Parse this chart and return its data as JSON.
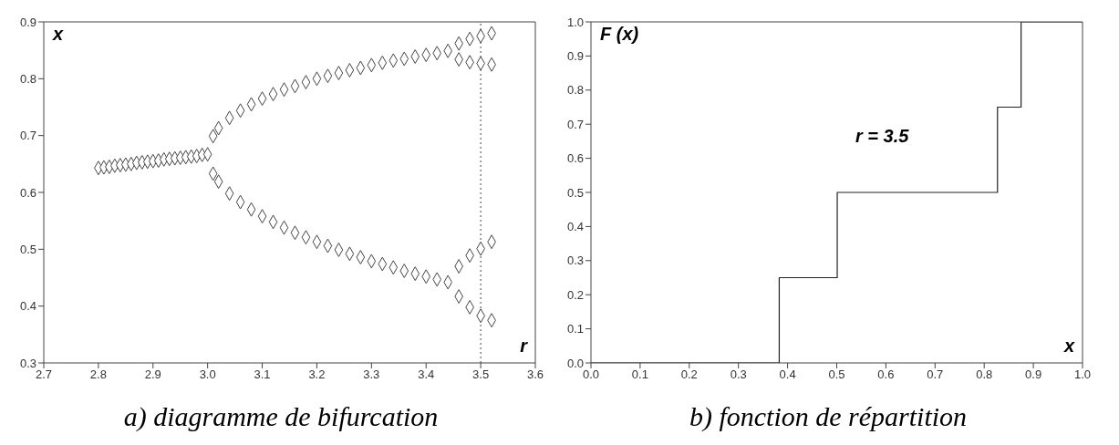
{
  "chart_data": [
    {
      "type": "scatter",
      "title": "a) diagramme de bifurcation",
      "xlabel": "r",
      "ylabel": "x",
      "marker": "diamond",
      "grid": false,
      "series": [
        {
          "color": "#444444",
          "x": [
            2.8,
            2.81,
            2.82,
            2.83,
            2.84,
            2.85,
            2.86,
            2.87,
            2.88,
            2.89,
            2.9,
            2.91,
            2.92,
            2.93,
            2.94,
            2.95,
            2.96,
            2.97,
            2.98,
            2.99,
            3.0,
            3.01,
            3.02,
            3.04,
            3.06,
            3.08,
            3.1,
            3.12,
            3.14,
            3.16,
            3.18,
            3.2,
            3.22,
            3.24,
            3.26,
            3.28,
            3.3,
            3.32,
            3.34,
            3.36,
            3.38,
            3.4,
            3.42,
            3.44,
            3.01,
            3.02,
            3.04,
            3.06,
            3.08,
            3.1,
            3.12,
            3.14,
            3.16,
            3.18,
            3.2,
            3.22,
            3.24,
            3.26,
            3.28,
            3.3,
            3.32,
            3.34,
            3.36,
            3.38,
            3.4,
            3.42,
            3.44,
            3.46,
            3.48,
            3.5,
            3.52,
            3.46,
            3.48,
            3.5,
            3.52,
            3.46,
            3.48,
            3.5,
            3.52,
            3.46,
            3.48,
            3.5,
            3.52
          ],
          "values": [
            0.643,
            0.644,
            0.645,
            0.647,
            0.648,
            0.649,
            0.65,
            0.652,
            0.653,
            0.654,
            0.655,
            0.656,
            0.658,
            0.659,
            0.66,
            0.661,
            0.662,
            0.663,
            0.664,
            0.666,
            0.667,
            0.699,
            0.713,
            0.731,
            0.744,
            0.755,
            0.765,
            0.773,
            0.781,
            0.787,
            0.794,
            0.8,
            0.805,
            0.81,
            0.815,
            0.819,
            0.824,
            0.828,
            0.832,
            0.835,
            0.839,
            0.842,
            0.845,
            0.849,
            0.633,
            0.619,
            0.598,
            0.583,
            0.57,
            0.558,
            0.548,
            0.538,
            0.529,
            0.521,
            0.513,
            0.506,
            0.499,
            0.492,
            0.486,
            0.479,
            0.474,
            0.468,
            0.462,
            0.457,
            0.452,
            0.447,
            0.442,
            0.862,
            0.87,
            0.875,
            0.88,
            0.834,
            0.829,
            0.827,
            0.825,
            0.47,
            0.489,
            0.501,
            0.513,
            0.417,
            0.398,
            0.383,
            0.375
          ]
        }
      ],
      "xlim": [
        2.7,
        3.6
      ],
      "xticks": [
        2.7,
        2.8,
        2.9,
        {
          "value": 3,
          "label": "3.0"
        },
        3.1,
        3.2,
        3.3,
        3.4,
        3.5,
        3.6
      ],
      "ylim": [
        0.3,
        0.9
      ],
      "yticks": [
        0.3,
        0.4,
        0.5,
        0.6,
        0.7,
        0.8,
        0.9
      ],
      "ref_lines": [
        {
          "axis": "x",
          "value": 3.5,
          "line_style": "dotted",
          "color": "#444444"
        }
      ]
    },
    {
      "type": "step",
      "title": "b) fonction de répartition",
      "xlabel": "x",
      "ylabel": "F (x)",
      "grid": false,
      "annotations": [
        "r = 3.5"
      ],
      "series": [
        {
          "color": "#222222",
          "x": [
            0,
            0.383,
            0.501,
            0.827,
            0.875,
            1
          ],
          "values": [
            0,
            0.25,
            0.5,
            0.75,
            1,
            1
          ]
        }
      ],
      "xlim": [
        0,
        1
      ],
      "xticks": [
        {
          "value": 0,
          "label": "0.0"
        },
        {
          "value": 0.1,
          "label": "0.1"
        },
        {
          "value": 0.2,
          "label": "0.2"
        },
        {
          "value": 0.3,
          "label": "0.3"
        },
        {
          "value": 0.4,
          "label": "0.4"
        },
        {
          "value": 0.5,
          "label": "0.5"
        },
        {
          "value": 0.6,
          "label": "0.6"
        },
        {
          "value": 0.7,
          "label": "0.7"
        },
        {
          "value": 0.8,
          "label": "0.8"
        },
        {
          "value": 0.9,
          "label": "0.9"
        },
        {
          "value": 1,
          "label": "1.0"
        }
      ],
      "ylim": [
        0,
        1
      ],
      "yticks": [
        {
          "value": 0,
          "label": "0.0"
        },
        {
          "value": 0.1,
          "label": "0.1"
        },
        {
          "value": 0.2,
          "label": "0.2"
        },
        {
          "value": 0.3,
          "label": "0.3"
        },
        {
          "value": 0.4,
          "label": "0.4"
        },
        {
          "value": 0.5,
          "label": "0.5"
        },
        {
          "value": 0.6,
          "label": "0.6"
        },
        {
          "value": 0.7,
          "label": "0.7"
        },
        {
          "value": 0.8,
          "label": "0.8"
        },
        {
          "value": 0.9,
          "label": "0.9"
        },
        {
          "value": 1,
          "label": "1.0"
        }
      ]
    }
  ]
}
